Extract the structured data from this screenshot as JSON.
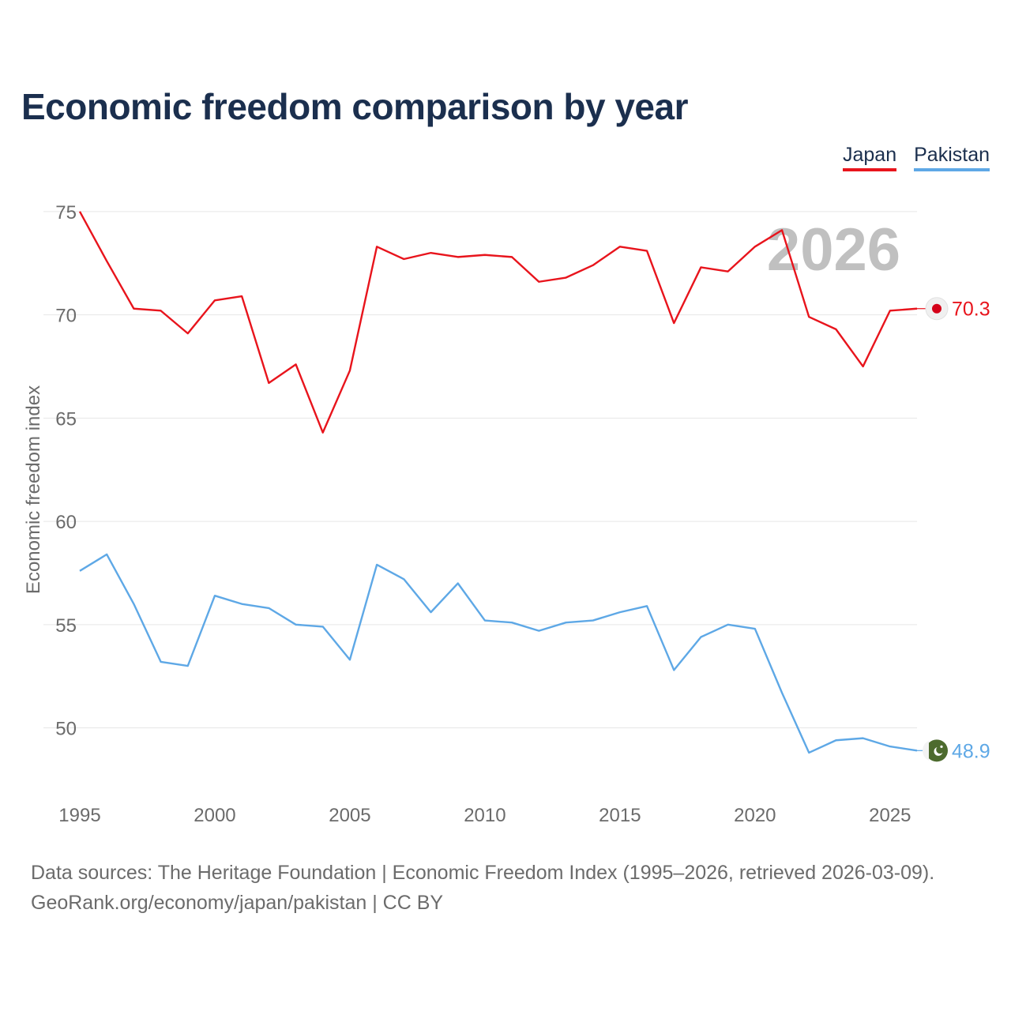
{
  "chart_data": {
    "type": "line",
    "title": "Economic freedom comparison by year",
    "ylabel": "Economic freedom index",
    "xlabel": "",
    "year_watermark": "2026",
    "xlim": [
      1995,
      2026
    ],
    "ylim": [
      47,
      75.3
    ],
    "y_ticks": [
      50,
      55,
      60,
      65,
      70,
      75
    ],
    "x_ticks": [
      1995,
      2000,
      2005,
      2010,
      2015,
      2020,
      2025
    ],
    "grid": true,
    "legend_position": "top-right",
    "x": [
      1995,
      1996,
      1997,
      1998,
      1999,
      2000,
      2001,
      2002,
      2003,
      2004,
      2005,
      2006,
      2007,
      2008,
      2009,
      2010,
      2011,
      2012,
      2013,
      2014,
      2015,
      2016,
      2017,
      2018,
      2019,
      2020,
      2021,
      2022,
      2023,
      2024,
      2025,
      2026
    ],
    "series": [
      {
        "name": "Japan",
        "color": "#e8141c",
        "end_label": "70.3",
        "icon": "japan-flag-icon",
        "values": [
          75.0,
          72.6,
          70.3,
          70.2,
          69.1,
          70.7,
          70.9,
          66.7,
          67.6,
          64.3,
          67.3,
          73.3,
          72.7,
          73.0,
          72.8,
          72.9,
          72.8,
          71.6,
          71.8,
          72.4,
          73.3,
          73.1,
          69.6,
          72.3,
          72.1,
          73.3,
          74.1,
          69.9,
          69.3,
          67.5,
          70.2,
          70.3
        ]
      },
      {
        "name": "Pakistan",
        "color": "#5ea8e6",
        "end_label": "48.9",
        "icon": "pakistan-flag-icon",
        "values": [
          57.6,
          58.4,
          56.0,
          53.2,
          53.0,
          56.4,
          56.0,
          55.8,
          55.0,
          54.9,
          53.3,
          57.9,
          57.2,
          55.6,
          57.0,
          55.2,
          55.1,
          54.7,
          55.1,
          55.2,
          55.6,
          55.9,
          52.8,
          54.4,
          55.0,
          54.8,
          51.7,
          48.8,
          49.4,
          49.5,
          49.1,
          48.9
        ]
      }
    ]
  },
  "footer": {
    "line1": "Data sources: The Heritage Foundation | Economic Freedom Index (1995–2026, retrieved 2026-03-09).",
    "line2": "GeoRank.org/economy/japan/pakistan | CC BY"
  }
}
